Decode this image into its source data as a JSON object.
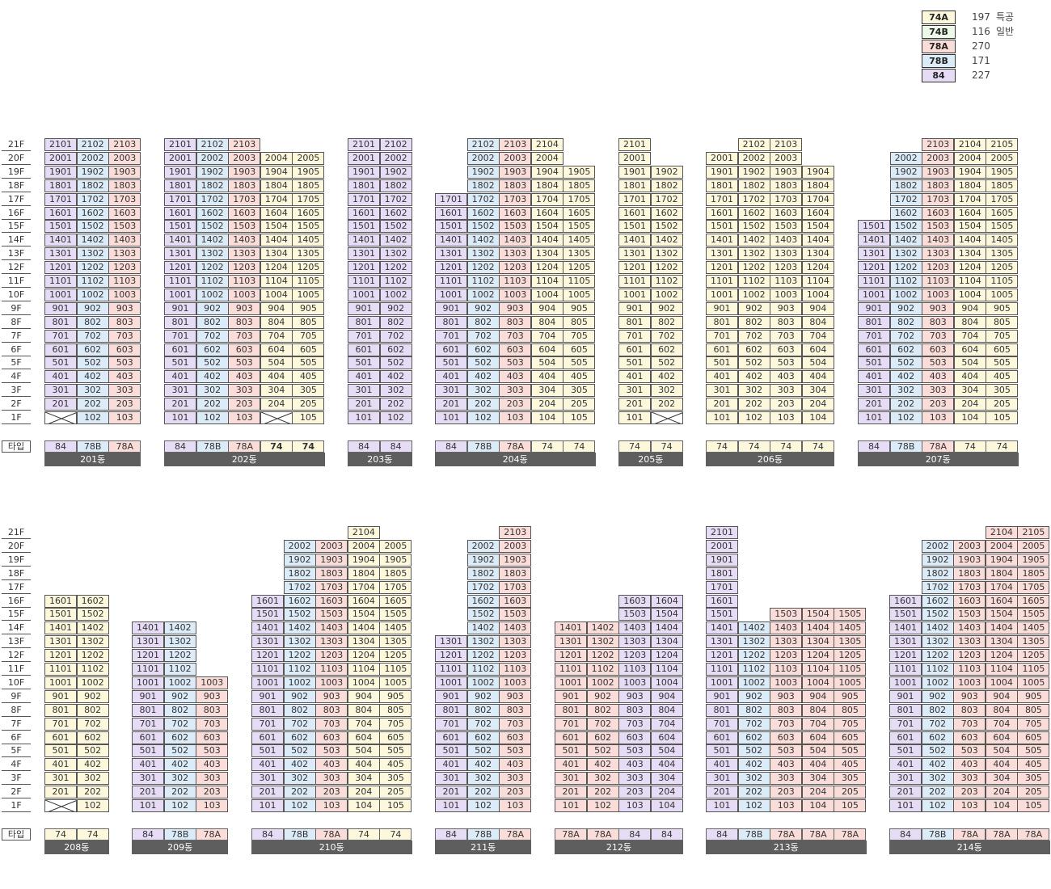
{
  "legend": [
    {
      "type": "74A",
      "count": "197",
      "label": "특공",
      "color": "#fdf8dc"
    },
    {
      "type": "74B",
      "count": "116",
      "label": "일반",
      "color": "#ecf8e8"
    },
    {
      "type": "78A",
      "count": "270",
      "label": "",
      "color": "#fadcd8"
    },
    {
      "type": "78B",
      "count": "171",
      "label": "",
      "color": "#dcebf8"
    },
    {
      "type": "84",
      "count": "227",
      "label": "",
      "color": "#e6dcf6"
    }
  ],
  "type_row_label": "타입",
  "panels": [
    {
      "name": "upper",
      "floors": [
        "21F",
        "20F",
        "19F",
        "18F",
        "17F",
        "16F",
        "15F",
        "14F",
        "13F",
        "12F",
        "11F",
        "10F",
        "9F",
        "8F",
        "7F",
        "6F",
        "5F",
        "4F",
        "3F",
        "2F",
        "1F"
      ],
      "buildings": [
        {
          "name": "201동",
          "lines": [
            {
              "code": "01",
              "type": "84",
              "top": 21,
              "bottom": 2
            },
            {
              "code": "02",
              "type": "78B",
              "top": 21,
              "bottom": 1
            },
            {
              "code": "03",
              "type": "78A",
              "top": 21,
              "bottom": 1
            }
          ],
          "missing": [
            {
              "line": 0,
              "floor": 1
            }
          ]
        },
        {
          "name": "202동",
          "lines": [
            {
              "code": "01",
              "type": "84",
              "top": 21,
              "bottom": 1
            },
            {
              "code": "02",
              "type": "78B",
              "top": 21,
              "bottom": 1
            },
            {
              "code": "03",
              "type": "78A",
              "top": 21,
              "bottom": 1
            },
            {
              "code": "04",
              "type": "74",
              "top": 20,
              "bottom": 2,
              "bold": true
            },
            {
              "code": "05",
              "type": "74",
              "top": 20,
              "bottom": 1,
              "bold": true
            }
          ],
          "missing": [
            {
              "line": 3,
              "floor": 1
            }
          ]
        },
        {
          "name": "203동",
          "lines": [
            {
              "code": "01",
              "type": "84",
              "top": 21,
              "bottom": 1
            },
            {
              "code": "02",
              "type": "84",
              "top": 21,
              "bottom": 1
            }
          ],
          "missing": []
        },
        {
          "name": "204동",
          "lines": [
            {
              "code": "01",
              "type": "84",
              "top": 17,
              "bottom": 1
            },
            {
              "code": "02",
              "type": "78B",
              "top": 21,
              "bottom": 1
            },
            {
              "code": "03",
              "type": "78A",
              "top": 21,
              "bottom": 1
            },
            {
              "code": "04",
              "type": "74",
              "top": 21,
              "bottom": 1
            },
            {
              "code": "05",
              "type": "74",
              "top": 19,
              "bottom": 1
            }
          ],
          "missing": []
        },
        {
          "name": "205동",
          "lines": [
            {
              "code": "01",
              "type": "74",
              "top": 21,
              "bottom": 1
            },
            {
              "code": "02",
              "type": "74",
              "top": 19,
              "bottom": 2
            }
          ],
          "missing": [
            {
              "line": 1,
              "floor": 1
            }
          ]
        },
        {
          "name": "206동",
          "lines": [
            {
              "code": "01",
              "type": "74",
              "top": 20,
              "bottom": 1
            },
            {
              "code": "02",
              "type": "74",
              "top": 21,
              "bottom": 1
            },
            {
              "code": "03",
              "type": "74",
              "top": 21,
              "bottom": 1
            },
            {
              "code": "04",
              "type": "74",
              "top": 19,
              "bottom": 1
            }
          ],
          "missing": []
        },
        {
          "name": "207동",
          "lines": [
            {
              "code": "01",
              "type": "84",
              "top": 15,
              "bottom": 1
            },
            {
              "code": "02",
              "type": "78B",
              "top": 20,
              "bottom": 1
            },
            {
              "code": "03",
              "type": "78A",
              "top": 21,
              "bottom": 1
            },
            {
              "code": "04",
              "type": "74",
              "top": 21,
              "bottom": 1
            },
            {
              "code": "05",
              "type": "74",
              "top": 21,
              "bottom": 1
            }
          ],
          "missing": []
        }
      ]
    },
    {
      "name": "lower",
      "floors": [
        "21F",
        "20F",
        "19F",
        "18F",
        "17F",
        "16F",
        "15F",
        "14F",
        "13F",
        "12F",
        "11F",
        "10F",
        "9F",
        "8F",
        "7F",
        "6F",
        "5F",
        "4F",
        "3F",
        "2F",
        "1F"
      ],
      "buildings": [
        {
          "name": "208동",
          "lines": [
            {
              "code": "01",
              "type": "74",
              "top": 16,
              "bottom": 2
            },
            {
              "code": "02",
              "type": "74",
              "top": 16,
              "bottom": 1
            }
          ],
          "missing": [
            {
              "line": 0,
              "floor": 1
            }
          ]
        },
        {
          "name": "209동",
          "lines": [
            {
              "code": "01",
              "type": "84",
              "top": 14,
              "bottom": 1
            },
            {
              "code": "02",
              "type": "78B",
              "top": 14,
              "bottom": 1
            },
            {
              "code": "03",
              "type": "78A",
              "top": 10,
              "bottom": 1
            }
          ],
          "missing": []
        },
        {
          "name": "210동",
          "lines": [
            {
              "code": "01",
              "type": "84",
              "top": 16,
              "bottom": 1
            },
            {
              "code": "02",
              "type": "78B",
              "top": 20,
              "bottom": 1
            },
            {
              "code": "03",
              "type": "78A",
              "top": 20,
              "bottom": 1
            },
            {
              "code": "04",
              "type": "74",
              "top": 21,
              "bottom": 1
            },
            {
              "code": "05",
              "type": "74",
              "top": 20,
              "bottom": 1
            }
          ],
          "missing": []
        },
        {
          "name": "211동",
          "lines": [
            {
              "code": "01",
              "type": "84",
              "top": 13,
              "bottom": 1
            },
            {
              "code": "02",
              "type": "78B",
              "top": 20,
              "bottom": 1
            },
            {
              "code": "03",
              "type": "78A",
              "top": 21,
              "bottom": 1
            }
          ],
          "missing": []
        },
        {
          "name": "212동",
          "lines": [
            {
              "code": "01",
              "type": "78A",
              "top": 14,
              "bottom": 1
            },
            {
              "code": "02",
              "type": "78A",
              "top": 14,
              "bottom": 1
            },
            {
              "code": "03",
              "type": "84",
              "top": 16,
              "bottom": 1
            },
            {
              "code": "04",
              "type": "84",
              "top": 16,
              "bottom": 1
            }
          ],
          "missing": []
        },
        {
          "name": "213동",
          "lines": [
            {
              "code": "01",
              "type": "84",
              "top": 21,
              "bottom": 1
            },
            {
              "code": "02",
              "type": "78B",
              "top": 14,
              "bottom": 1
            },
            {
              "code": "03",
              "type": "78A",
              "top": 15,
              "bottom": 1
            },
            {
              "code": "04",
              "type": "78A",
              "top": 15,
              "bottom": 1
            },
            {
              "code": "05",
              "type": "78A",
              "top": 15,
              "bottom": 1
            }
          ],
          "missing": []
        },
        {
          "name": "214동",
          "lines": [
            {
              "code": "01",
              "type": "84",
              "top": 16,
              "bottom": 1
            },
            {
              "code": "02",
              "type": "78B",
              "top": 20,
              "bottom": 1
            },
            {
              "code": "03",
              "type": "78A",
              "top": 20,
              "bottom": 1
            },
            {
              "code": "04",
              "type": "78A",
              "top": 21,
              "bottom": 1
            },
            {
              "code": "05",
              "type": "78A",
              "top": 21,
              "bottom": 1
            }
          ],
          "missing": []
        }
      ]
    }
  ]
}
